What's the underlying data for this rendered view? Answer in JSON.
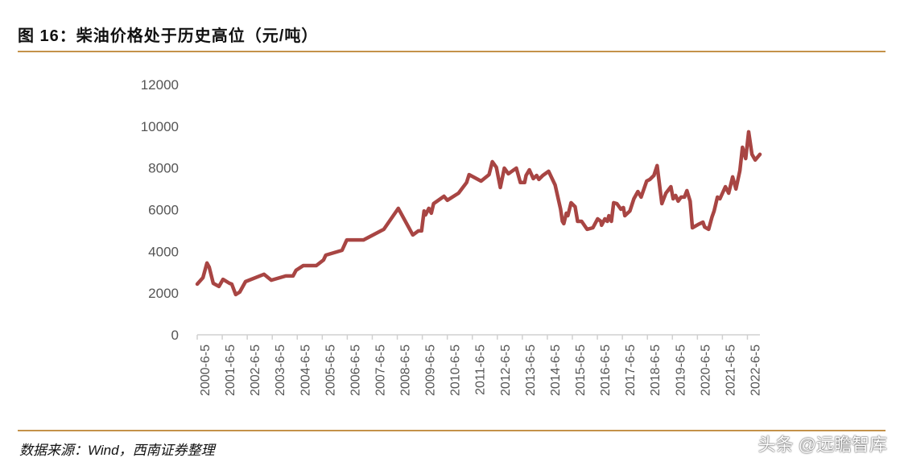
{
  "title": "图 16：柴油价格处于历史高位（元/吨）",
  "source": "数据来源：Wind，西南证券整理",
  "watermark": "头条 @远瞻智库",
  "colors": {
    "line": "#a84543",
    "rule": "#c4924a",
    "axis": "#d0d0d0"
  },
  "chart_data": {
    "type": "line",
    "title": "柴油价格处于历史高位（元/吨）",
    "xlabel": "",
    "ylabel": "元/吨",
    "ylim": [
      0,
      12000
    ],
    "xlim": [
      2000.42,
      2022.92
    ],
    "yticks": [
      0,
      2000,
      4000,
      6000,
      8000,
      10000,
      12000
    ],
    "xtick_labels": [
      "2000-6-5",
      "2001-6-5",
      "2002-6-5",
      "2003-6-5",
      "2004-6-5",
      "2005-6-5",
      "2006-6-5",
      "2007-6-5",
      "2008-6-5",
      "2009-6-5",
      "2010-6-5",
      "2011-6-5",
      "2012-6-5",
      "2013-6-5",
      "2014-6-5",
      "2015-6-5",
      "2016-6-5",
      "2017-6-5",
      "2018-6-5",
      "2019-6-5",
      "2020-6-5",
      "2021-6-5",
      "2022-6-5"
    ],
    "grid": false,
    "legend": "none",
    "series": [
      {
        "name": "柴油价格",
        "points": [
          [
            2000.42,
            2430
          ],
          [
            2000.65,
            2740
          ],
          [
            2000.81,
            3440
          ],
          [
            2000.9,
            3240
          ],
          [
            2001.06,
            2470
          ],
          [
            2001.29,
            2320
          ],
          [
            2001.45,
            2660
          ],
          [
            2001.71,
            2470
          ],
          [
            2001.8,
            2430
          ],
          [
            2001.96,
            1930
          ],
          [
            2002.12,
            2050
          ],
          [
            2002.35,
            2550
          ],
          [
            2003.09,
            2900
          ],
          [
            2003.38,
            2620
          ],
          [
            2003.96,
            2820
          ],
          [
            2004.25,
            2820
          ],
          [
            2004.37,
            3090
          ],
          [
            2004.66,
            3320
          ],
          [
            2005.18,
            3320
          ],
          [
            2005.47,
            3590
          ],
          [
            2005.56,
            3820
          ],
          [
            2006.21,
            4050
          ],
          [
            2006.4,
            4550
          ],
          [
            2007.07,
            4550
          ],
          [
            2007.88,
            5060
          ],
          [
            2008.46,
            6060
          ],
          [
            2009.04,
            4790
          ],
          [
            2009.26,
            4980
          ],
          [
            2009.39,
            4980
          ],
          [
            2009.49,
            5940
          ],
          [
            2009.55,
            5750
          ],
          [
            2009.68,
            6060
          ],
          [
            2009.78,
            5830
          ],
          [
            2009.87,
            6290
          ],
          [
            2010.29,
            6640
          ],
          [
            2010.42,
            6450
          ],
          [
            2010.87,
            6790
          ],
          [
            2011.19,
            7300
          ],
          [
            2011.29,
            7680
          ],
          [
            2011.77,
            7370
          ],
          [
            2012.09,
            7680
          ],
          [
            2012.22,
            8300
          ],
          [
            2012.38,
            8030
          ],
          [
            2012.54,
            7060
          ],
          [
            2012.7,
            7990
          ],
          [
            2012.86,
            7720
          ],
          [
            2013.18,
            7990
          ],
          [
            2013.34,
            7300
          ],
          [
            2013.51,
            7300
          ],
          [
            2013.57,
            7640
          ],
          [
            2013.7,
            7910
          ],
          [
            2013.86,
            7490
          ],
          [
            2013.99,
            7640
          ],
          [
            2014.08,
            7450
          ],
          [
            2014.24,
            7640
          ],
          [
            2014.47,
            7840
          ],
          [
            2014.73,
            7180
          ],
          [
            2014.95,
            6020
          ],
          [
            2015.02,
            5440
          ],
          [
            2015.08,
            5330
          ],
          [
            2015.18,
            5830
          ],
          [
            2015.24,
            5710
          ],
          [
            2015.37,
            6330
          ],
          [
            2015.53,
            6140
          ],
          [
            2015.63,
            5440
          ],
          [
            2015.79,
            5440
          ],
          [
            2016.01,
            5060
          ],
          [
            2016.24,
            5130
          ],
          [
            2016.43,
            5560
          ],
          [
            2016.56,
            5440
          ],
          [
            2016.59,
            5250
          ],
          [
            2016.72,
            5560
          ],
          [
            2016.82,
            5440
          ],
          [
            2016.88,
            5710
          ],
          [
            2016.98,
            5440
          ],
          [
            2017.07,
            6330
          ],
          [
            2017.2,
            6290
          ],
          [
            2017.36,
            6020
          ],
          [
            2017.46,
            6100
          ],
          [
            2017.52,
            5710
          ],
          [
            2017.72,
            5940
          ],
          [
            2017.88,
            6520
          ],
          [
            2018.04,
            6870
          ],
          [
            2018.17,
            6600
          ],
          [
            2018.39,
            7370
          ],
          [
            2018.52,
            7450
          ],
          [
            2018.68,
            7640
          ],
          [
            2018.81,
            8110
          ],
          [
            2019.0,
            6290
          ],
          [
            2019.16,
            6790
          ],
          [
            2019.36,
            7100
          ],
          [
            2019.45,
            6520
          ],
          [
            2019.55,
            6680
          ],
          [
            2019.65,
            6410
          ],
          [
            2019.77,
            6600
          ],
          [
            2019.9,
            6600
          ],
          [
            2020.0,
            6910
          ],
          [
            2020.13,
            6410
          ],
          [
            2020.22,
            5130
          ],
          [
            2020.45,
            5290
          ],
          [
            2020.64,
            5400
          ],
          [
            2020.71,
            5170
          ],
          [
            2020.87,
            5060
          ],
          [
            2021.0,
            5640
          ],
          [
            2021.09,
            5940
          ],
          [
            2021.22,
            6600
          ],
          [
            2021.32,
            6520
          ],
          [
            2021.54,
            7100
          ],
          [
            2021.67,
            6790
          ],
          [
            2021.83,
            7570
          ],
          [
            2021.96,
            6990
          ],
          [
            2022.12,
            7870
          ],
          [
            2022.22,
            8990
          ],
          [
            2022.35,
            8450
          ],
          [
            2022.47,
            9730
          ],
          [
            2022.6,
            8650
          ],
          [
            2022.73,
            8380
          ],
          [
            2022.92,
            8650
          ]
        ]
      }
    ]
  }
}
